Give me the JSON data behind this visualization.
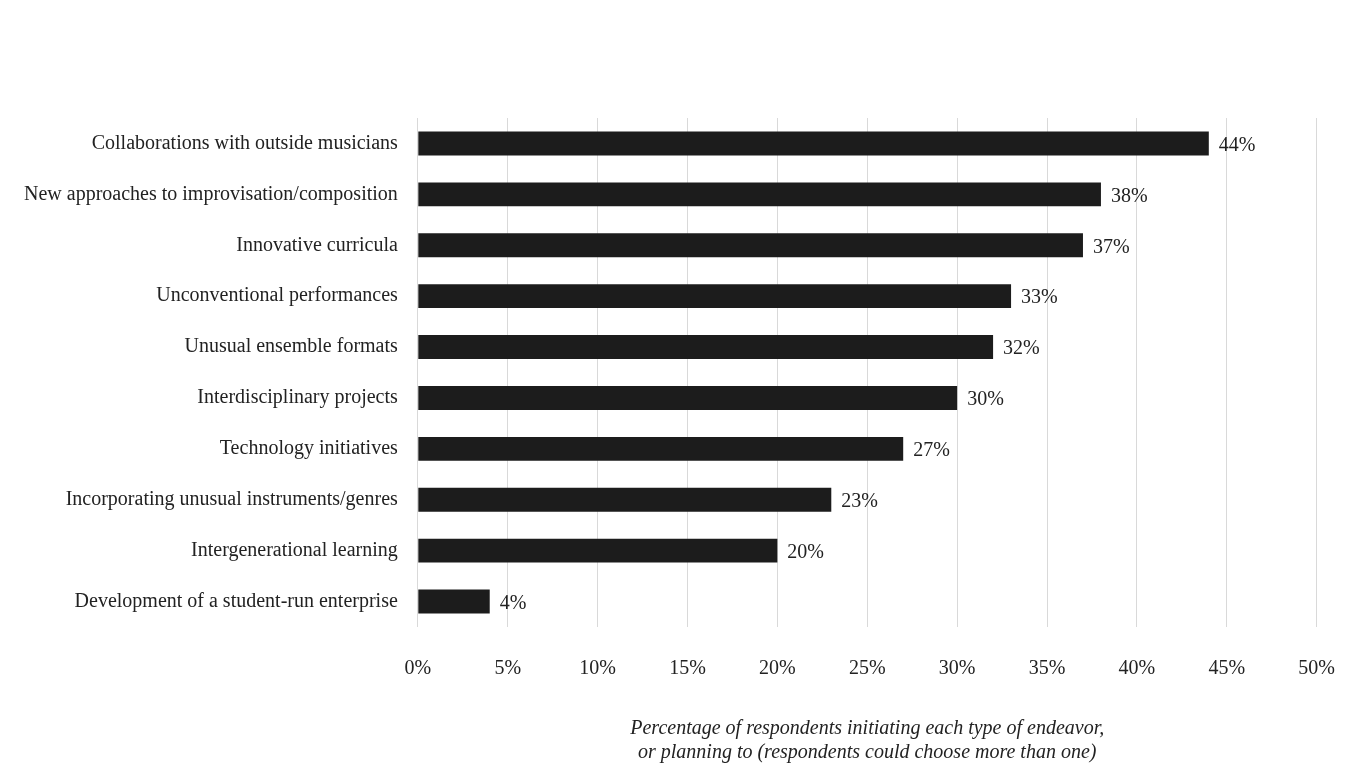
{
  "chart_data": {
    "type": "bar",
    "orientation": "horizontal",
    "categories": [
      "Collaborations with outside musicians",
      "New approaches to improvisation/composition",
      "Innovative curricula",
      "Unconventional performances",
      "Unusual ensemble formats",
      "Interdisciplinary projects",
      "Technology initiatives",
      "Incorporating unusual instruments/genres",
      "Intergenerational learning",
      "Development of a student-run enterprise"
    ],
    "values": [
      44,
      38,
      37,
      33,
      32,
      30,
      27,
      23,
      20,
      4
    ],
    "value_labels": [
      "44%",
      "38%",
      "37%",
      "33%",
      "32%",
      "30%",
      "27%",
      "23%",
      "20%",
      "4%"
    ],
    "color": "#1c1c1c",
    "xlim": [
      0,
      50
    ],
    "xticks": [
      {
        "value": 0,
        "label": "0%"
      },
      {
        "value": 5,
        "label": "5%"
      },
      {
        "value": 10,
        "label": "10%"
      },
      {
        "value": 15,
        "label": "15%"
      },
      {
        "value": 20,
        "label": "20%"
      },
      {
        "value": 25,
        "label": "25%"
      },
      {
        "value": 30,
        "label": "30%"
      },
      {
        "value": 35,
        "label": "35%"
      },
      {
        "value": 40,
        "label": "40%"
      },
      {
        "value": 45,
        "label": "45%"
      },
      {
        "value": 50,
        "label": "50%"
      }
    ],
    "xlabel": "Percentage of respondents initiating each type of endeavor,\nor planning to (respondents could choose more than one)",
    "grid": "x",
    "legend": false
  }
}
